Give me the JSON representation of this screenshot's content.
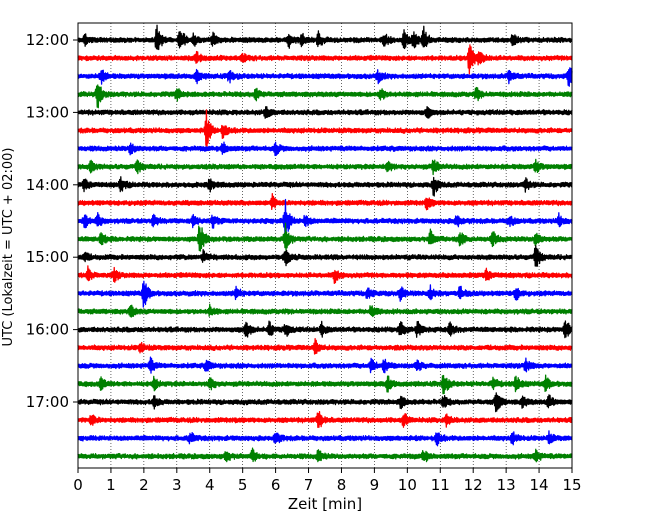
{
  "chart_data": {
    "type": "line",
    "title": "",
    "xlabel": "Zeit  [min]",
    "ylabel": "UTC (Lokalzeit = UTC + 02:00)",
    "xlim": [
      0,
      15
    ],
    "x_ticks": [
      "0",
      "1",
      "2",
      "3",
      "4",
      "5",
      "6",
      "7",
      "8",
      "9",
      "10",
      "11",
      "12",
      "13",
      "14",
      "15"
    ],
    "y_tick_labels": [
      "12:00",
      "13:00",
      "14:00",
      "15:00",
      "16:00",
      "17:00"
    ],
    "grid": "vertical dotted lines at each minute",
    "trace_colors": [
      "#000000",
      "#ff0000",
      "#0000ff",
      "#008000"
    ],
    "rows": [
      {
        "start": "12:00",
        "color": "#000000",
        "events": [
          [
            0.2,
            0.25
          ],
          [
            2.4,
            0.7
          ],
          [
            3.1,
            0.7
          ],
          [
            3.5,
            0.3
          ],
          [
            4.1,
            0.3
          ],
          [
            6.4,
            0.35
          ],
          [
            6.8,
            0.3
          ],
          [
            7.3,
            0.35
          ],
          [
            9.3,
            0.3
          ],
          [
            9.9,
            0.45
          ],
          [
            10.2,
            0.4
          ],
          [
            10.5,
            0.55
          ],
          [
            13.2,
            0.3
          ]
        ]
      },
      {
        "start": "12:15",
        "color": "#ff0000",
        "events": [
          [
            3.6,
            0.25
          ],
          [
            5.0,
            0.25
          ],
          [
            11.9,
            1.0
          ],
          [
            12.2,
            0.4
          ]
        ]
      },
      {
        "start": "12:30",
        "color": "#0000ff",
        "events": [
          [
            0.7,
            0.35
          ],
          [
            3.6,
            0.3
          ],
          [
            4.6,
            0.3
          ],
          [
            9.1,
            0.3
          ],
          [
            13.1,
            0.35
          ],
          [
            14.9,
            0.6
          ]
        ]
      },
      {
        "start": "12:45",
        "color": "#008000",
        "events": [
          [
            0.6,
            0.75
          ],
          [
            3.0,
            0.3
          ],
          [
            5.4,
            0.3
          ],
          [
            9.2,
            0.3
          ],
          [
            12.1,
            0.3
          ]
        ]
      },
      {
        "start": "13:00",
        "color": "#000000",
        "events": [
          [
            5.7,
            0.3
          ],
          [
            10.6,
            0.25
          ]
        ]
      },
      {
        "start": "13:15",
        "color": "#ff0000",
        "events": [
          [
            3.9,
            0.9
          ],
          [
            4.4,
            0.35
          ]
        ]
      },
      {
        "start": "13:30",
        "color": "#0000ff",
        "events": [
          [
            1.6,
            0.3
          ],
          [
            4.4,
            0.3
          ],
          [
            6.0,
            0.3
          ]
        ]
      },
      {
        "start": "13:45",
        "color": "#008000",
        "events": [
          [
            0.4,
            0.3
          ],
          [
            1.8,
            0.3
          ],
          [
            9.4,
            0.3
          ],
          [
            10.8,
            0.4
          ],
          [
            13.9,
            0.3
          ]
        ]
      },
      {
        "start": "14:00",
        "color": "#000000",
        "events": [
          [
            0.2,
            0.3
          ],
          [
            1.3,
            0.35
          ],
          [
            4.0,
            0.3
          ],
          [
            10.8,
            0.5
          ],
          [
            13.6,
            0.3
          ]
        ]
      },
      {
        "start": "14:15",
        "color": "#ff0000",
        "events": [
          [
            5.9,
            0.35
          ],
          [
            10.6,
            0.3
          ]
        ]
      },
      {
        "start": "14:30",
        "color": "#0000ff",
        "events": [
          [
            0.2,
            0.35
          ],
          [
            0.6,
            0.3
          ],
          [
            2.3,
            0.3
          ],
          [
            3.5,
            0.3
          ],
          [
            4.1,
            0.3
          ],
          [
            6.3,
            1.0
          ],
          [
            6.9,
            0.3
          ],
          [
            11.5,
            0.3
          ],
          [
            13.1,
            0.3
          ],
          [
            14.6,
            0.3
          ]
        ]
      },
      {
        "start": "14:45",
        "color": "#008000",
        "events": [
          [
            0.7,
            0.35
          ],
          [
            3.7,
            0.9
          ],
          [
            6.3,
            0.7
          ],
          [
            10.7,
            0.4
          ],
          [
            11.6,
            0.4
          ],
          [
            12.6,
            0.35
          ],
          [
            13.9,
            0.35
          ]
        ]
      },
      {
        "start": "15:00",
        "color": "#000000",
        "events": [
          [
            0.2,
            0.25
          ],
          [
            3.8,
            0.3
          ],
          [
            6.3,
            0.4
          ],
          [
            13.9,
            0.6
          ]
        ]
      },
      {
        "start": "15:15",
        "color": "#ff0000",
        "events": [
          [
            0.3,
            0.35
          ],
          [
            1.1,
            0.3
          ],
          [
            7.8,
            0.35
          ],
          [
            12.4,
            0.3
          ]
        ]
      },
      {
        "start": "15:30",
        "color": "#0000ff",
        "events": [
          [
            2.0,
            0.75
          ],
          [
            4.8,
            0.3
          ],
          [
            8.8,
            0.3
          ],
          [
            9.8,
            0.35
          ],
          [
            10.7,
            0.3
          ],
          [
            11.6,
            0.35
          ],
          [
            13.3,
            0.3
          ]
        ]
      },
      {
        "start": "15:45",
        "color": "#008000",
        "events": [
          [
            1.6,
            0.3
          ],
          [
            4.0,
            0.25
          ],
          [
            8.9,
            0.3
          ]
        ]
      },
      {
        "start": "16:00",
        "color": "#000000",
        "events": [
          [
            5.1,
            0.45
          ],
          [
            5.8,
            0.4
          ],
          [
            6.3,
            0.35
          ],
          [
            7.4,
            0.3
          ],
          [
            9.8,
            0.45
          ],
          [
            10.3,
            0.4
          ],
          [
            11.3,
            0.35
          ],
          [
            14.8,
            0.6
          ]
        ]
      },
      {
        "start": "16:15",
        "color": "#ff0000",
        "events": [
          [
            1.9,
            0.25
          ],
          [
            7.2,
            0.35
          ]
        ]
      },
      {
        "start": "16:30",
        "color": "#0000ff",
        "events": [
          [
            2.2,
            0.35
          ],
          [
            3.9,
            0.3
          ],
          [
            8.9,
            0.35
          ],
          [
            9.3,
            0.3
          ],
          [
            10.3,
            0.3
          ],
          [
            13.6,
            0.3
          ]
        ]
      },
      {
        "start": "16:45",
        "color": "#008000",
        "events": [
          [
            0.7,
            0.3
          ],
          [
            2.3,
            0.35
          ],
          [
            4.0,
            0.35
          ],
          [
            9.4,
            0.4
          ],
          [
            11.1,
            0.6
          ],
          [
            12.6,
            0.3
          ],
          [
            13.3,
            0.4
          ],
          [
            14.2,
            0.35
          ]
        ]
      },
      {
        "start": "17:00",
        "color": "#000000",
        "events": [
          [
            2.3,
            0.3
          ],
          [
            9.8,
            0.3
          ],
          [
            11.1,
            0.3
          ],
          [
            12.7,
            0.55
          ],
          [
            13.5,
            0.3
          ],
          [
            14.3,
            0.35
          ]
        ]
      },
      {
        "start": "17:15",
        "color": "#ff0000",
        "events": [
          [
            0.4,
            0.3
          ],
          [
            7.3,
            0.45
          ],
          [
            9.9,
            0.35
          ],
          [
            11.2,
            0.3
          ]
        ]
      },
      {
        "start": "17:30",
        "color": "#0000ff",
        "events": [
          [
            3.4,
            0.3
          ],
          [
            6.0,
            0.3
          ],
          [
            10.9,
            0.3
          ],
          [
            13.2,
            0.3
          ],
          [
            14.3,
            0.25
          ]
        ]
      },
      {
        "start": "17:45",
        "color": "#008000",
        "events": [
          [
            4.5,
            0.3
          ],
          [
            5.3,
            0.3
          ],
          [
            7.3,
            0.3
          ],
          [
            10.5,
            0.3
          ],
          [
            13.9,
            0.3
          ]
        ]
      }
    ]
  }
}
